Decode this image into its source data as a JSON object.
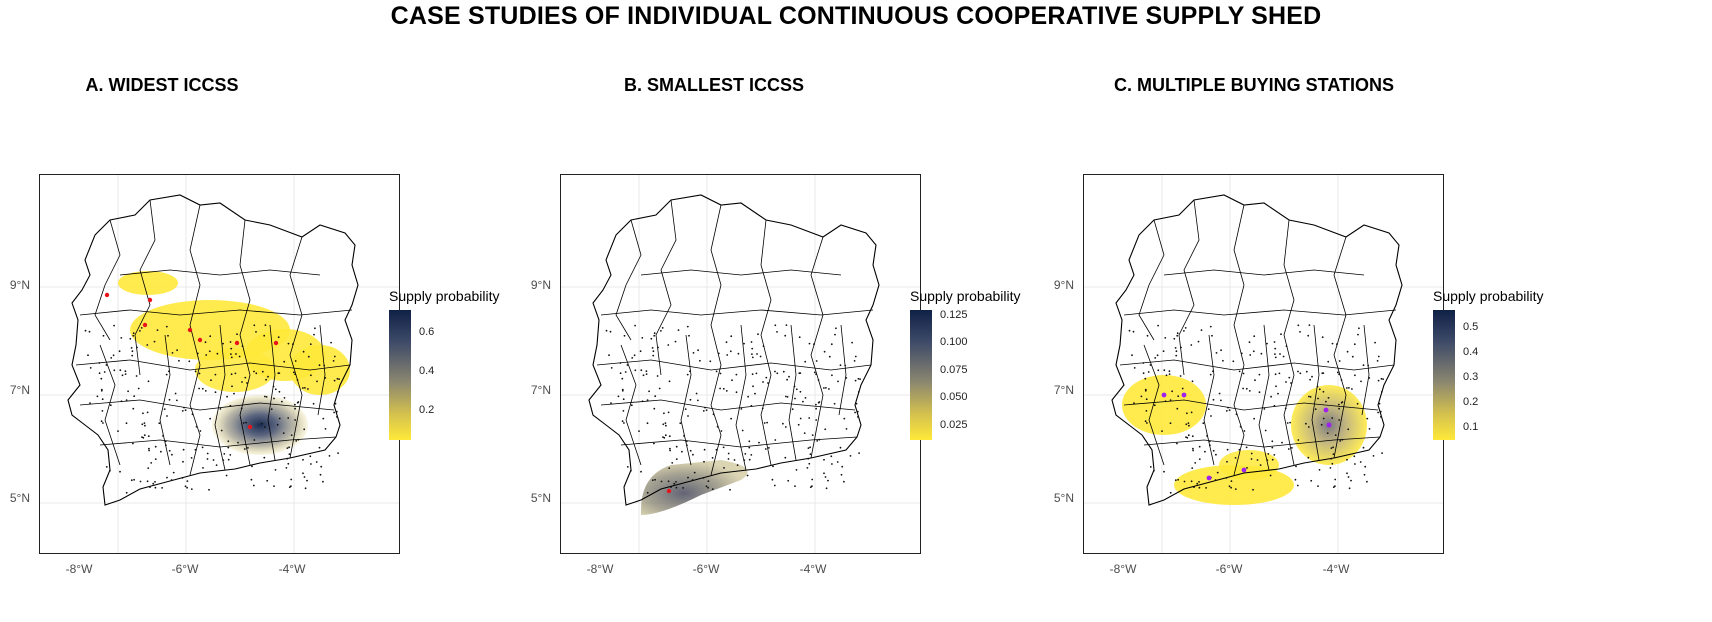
{
  "title": "CASE STUDIES OF INDIVIDUAL CONTINUOUS COOPERATIVE SUPPLY SHED",
  "panels": [
    {
      "title": "A. WIDEST ICCSS",
      "legend_title": "Supply probability",
      "legend_ticks": [
        "0.6",
        "0.4",
        "0.2"
      ],
      "legend_tick_values": [
        0.6,
        0.4,
        0.2
      ],
      "legend_range": [
        0.05,
        0.72
      ],
      "station_color": "#e8141b",
      "stations_count": 8
    },
    {
      "title": "B. SMALLEST ICCSS",
      "legend_title": "Supply probability",
      "legend_ticks": [
        "0.125",
        "0.100",
        "0.075",
        "0.050",
        "0.025"
      ],
      "legend_tick_values": [
        0.125,
        0.1,
        0.075,
        0.05,
        0.025
      ],
      "legend_range": [
        0.012,
        0.13
      ],
      "station_color": "#e8141b",
      "stations_count": 1
    },
    {
      "title": "C. MULTIPLE BUYING STATIONS",
      "legend_title": "Supply probability",
      "legend_ticks": [
        "0.5",
        "0.4",
        "0.3",
        "0.2",
        "0.1"
      ],
      "legend_tick_values": [
        0.5,
        0.4,
        0.3,
        0.2,
        0.1
      ],
      "legend_range": [
        0.05,
        0.57
      ],
      "station_color": "#a020f0",
      "stations_count": 6
    }
  ],
  "axis": {
    "y_ticks": [
      "9°N",
      "7°N",
      "5°N"
    ],
    "x_ticks": [
      "-8°W",
      "-6°W",
      "-4°W"
    ]
  },
  "colors": {
    "low": "#ffe93a",
    "mid": "#8a8670",
    "high": "#0f2147",
    "boundary": "#000000"
  }
}
